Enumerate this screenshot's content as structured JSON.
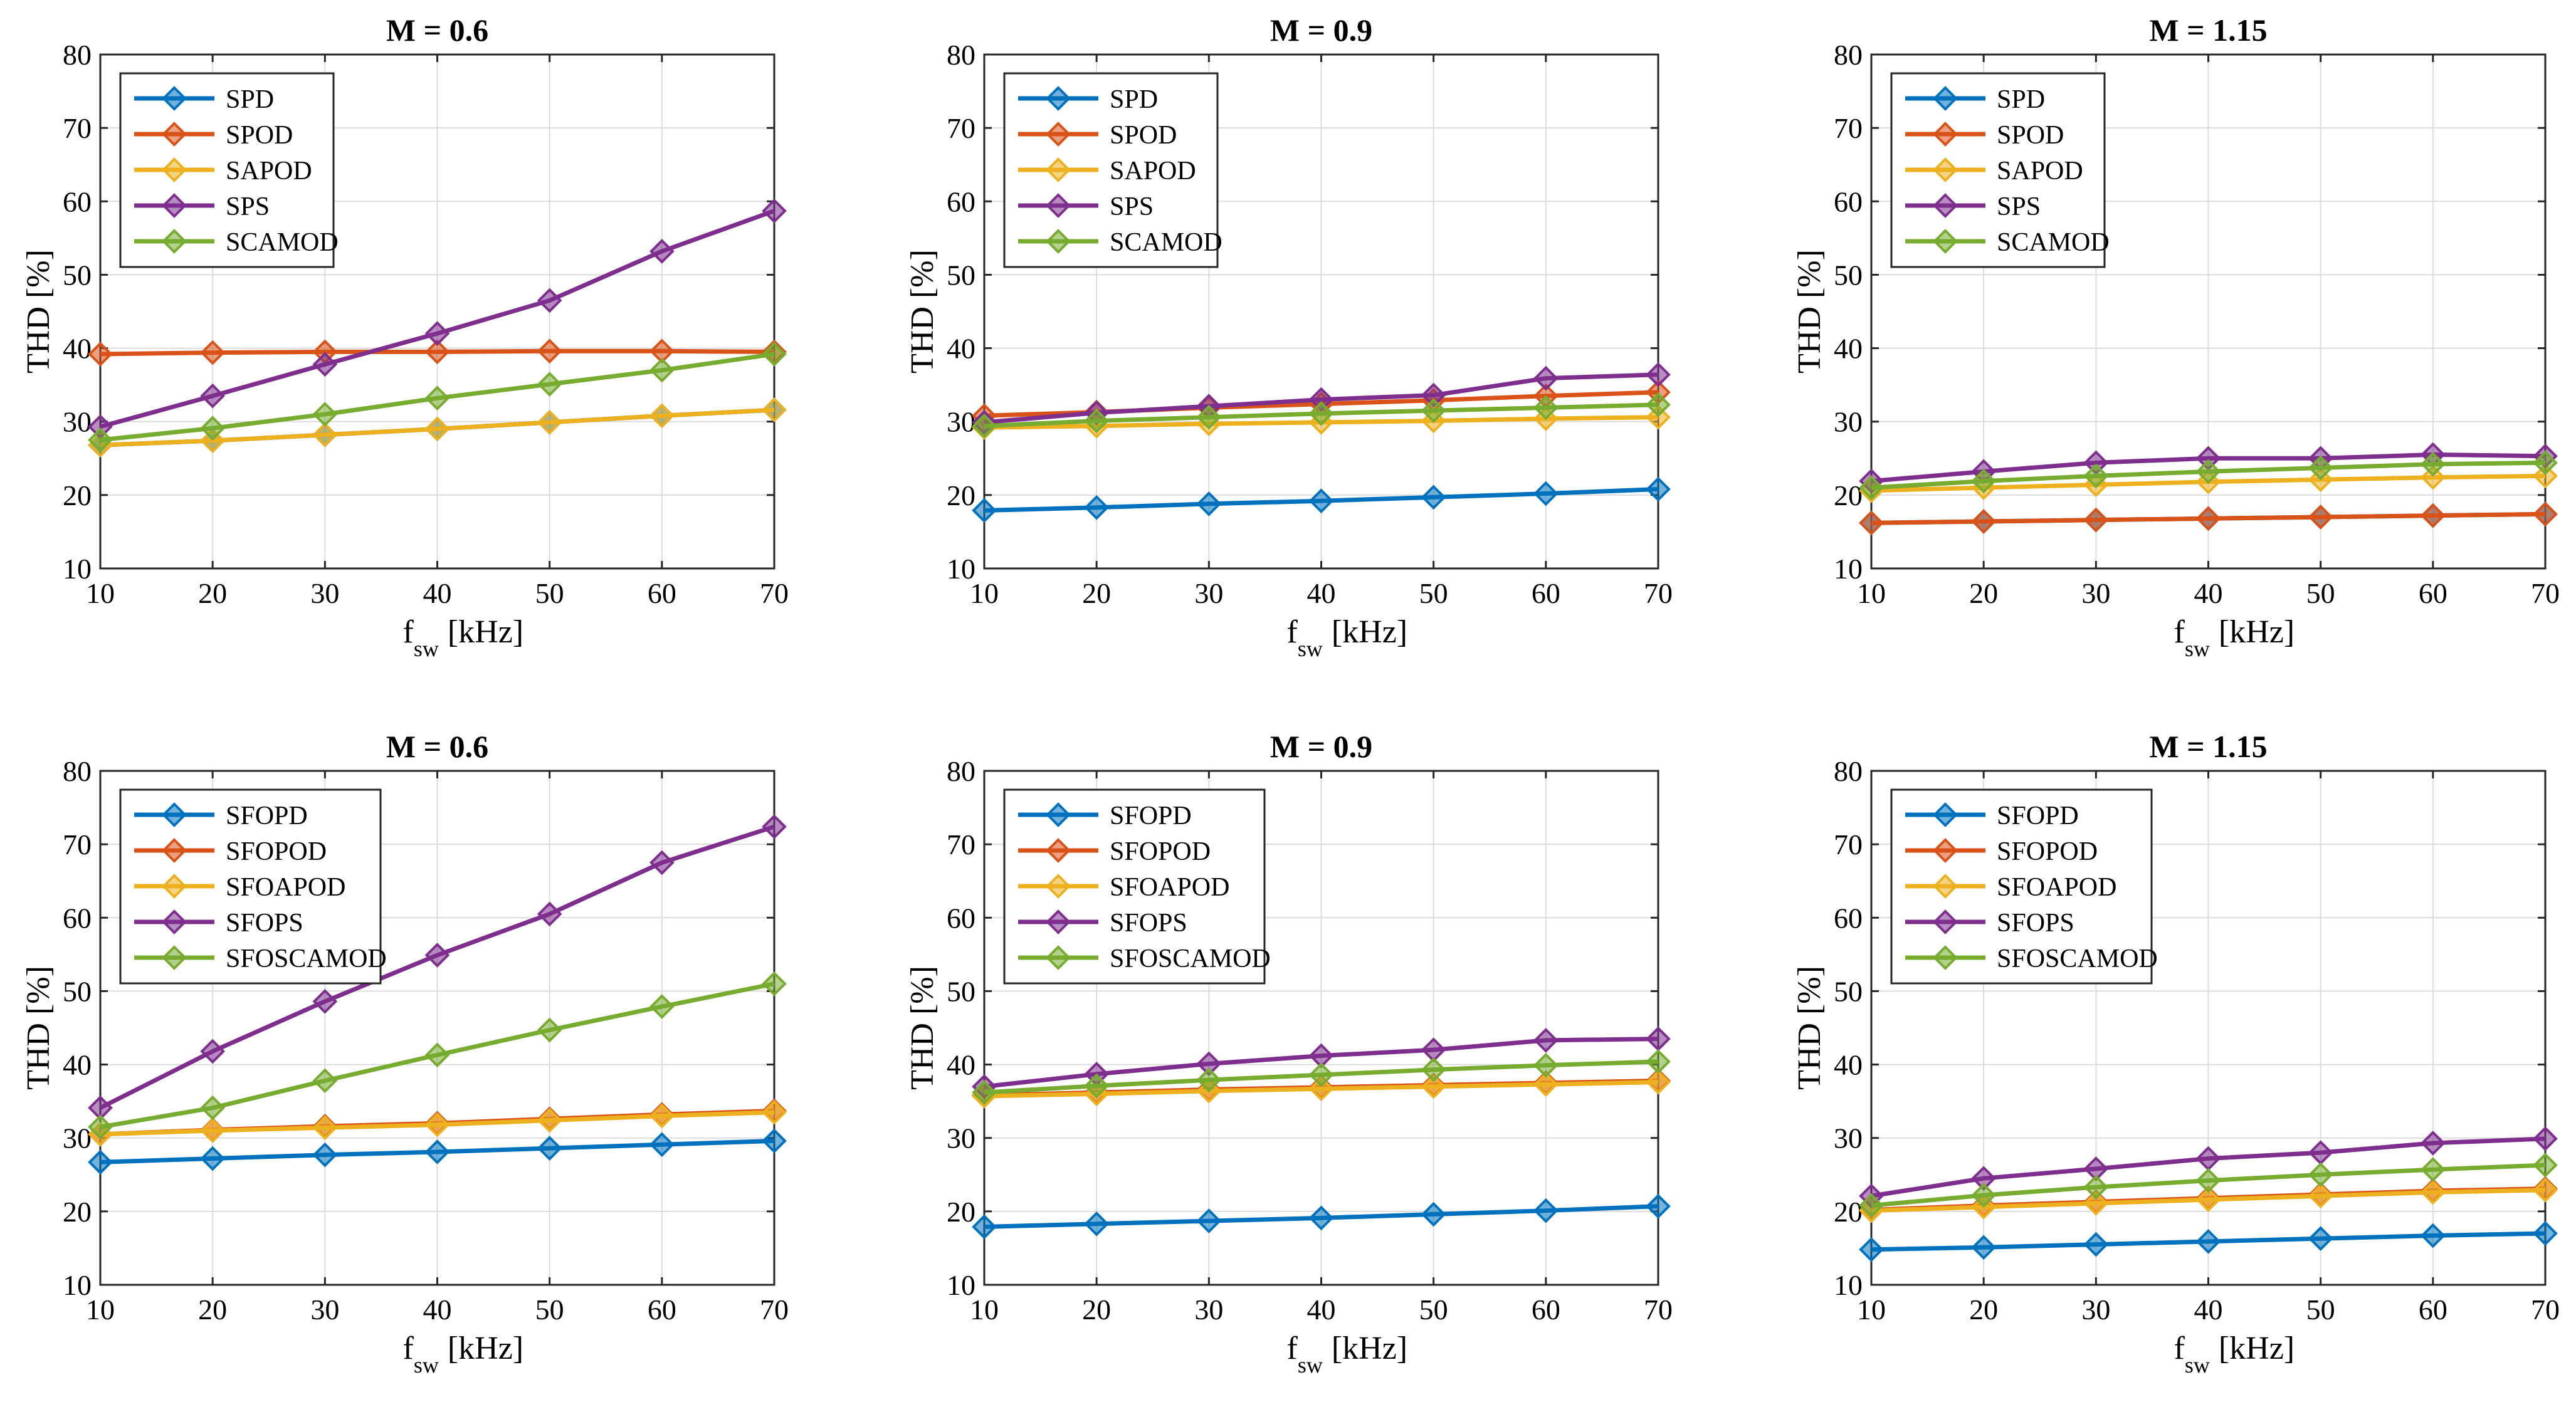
{
  "figure": {
    "colors": {
      "blue": "#0072BD",
      "orange": "#D95319",
      "yellow": "#EDB120",
      "purple": "#7E2F8E",
      "green": "#77AC30",
      "grid": "#dcdcdc",
      "axis": "#262626"
    }
  },
  "chart_data": [
    {
      "type": "line",
      "title": "M = 0.6",
      "xlabel": "f",
      "xlabel_sub": "sw",
      "xlabel_unit": "[kHz]",
      "ylabel": "THD [%]",
      "xlim": [
        10,
        70
      ],
      "ylim": [
        10,
        80
      ],
      "xticks": [
        "10",
        "20",
        "30",
        "40",
        "50",
        "60",
        "70"
      ],
      "yticks": [
        "10",
        "20",
        "30",
        "40",
        "50",
        "60",
        "70",
        "80"
      ],
      "grid": true,
      "legend_position": "top-left",
      "x": [
        10,
        20,
        30,
        40,
        50,
        60,
        70
      ],
      "series": [
        {
          "name": "SPD",
          "color": "#0072BD",
          "values": [
            26.8,
            27.4,
            28.2,
            29.0,
            29.9,
            30.8,
            31.6
          ]
        },
        {
          "name": "SPOD",
          "color": "#D95319",
          "values": [
            39.2,
            39.4,
            39.5,
            39.5,
            39.6,
            39.6,
            39.5
          ]
        },
        {
          "name": "SAPOD",
          "color": "#EDB120",
          "values": [
            26.8,
            27.4,
            28.2,
            29.0,
            29.9,
            30.8,
            31.6
          ]
        },
        {
          "name": "SPS",
          "color": "#7E2F8E",
          "values": [
            29.3,
            33.5,
            37.8,
            42.0,
            46.5,
            53.2,
            58.7
          ]
        },
        {
          "name": "SCAMOD",
          "color": "#77AC30",
          "values": [
            27.5,
            29.1,
            31.0,
            33.2,
            35.1,
            37.0,
            39.2
          ]
        }
      ]
    },
    {
      "type": "line",
      "title": "M = 0.9",
      "xlabel": "f",
      "xlabel_sub": "sw",
      "xlabel_unit": "[kHz]",
      "ylabel": "THD [%]",
      "xlim": [
        10,
        70
      ],
      "ylim": [
        10,
        80
      ],
      "xticks": [
        "10",
        "20",
        "30",
        "40",
        "50",
        "60",
        "70"
      ],
      "yticks": [
        "10",
        "20",
        "30",
        "40",
        "50",
        "60",
        "70",
        "80"
      ],
      "grid": true,
      "legend_position": "top-left",
      "x": [
        10,
        20,
        30,
        40,
        50,
        60,
        70
      ],
      "series": [
        {
          "name": "SPD",
          "color": "#0072BD",
          "values": [
            17.9,
            18.3,
            18.8,
            19.2,
            19.7,
            20.2,
            20.8
          ]
        },
        {
          "name": "SPOD",
          "color": "#D95319",
          "values": [
            30.8,
            31.3,
            31.9,
            32.4,
            32.9,
            33.5,
            34.0
          ]
        },
        {
          "name": "SAPOD",
          "color": "#EDB120",
          "values": [
            29.2,
            29.4,
            29.7,
            29.9,
            30.1,
            30.4,
            30.6
          ]
        },
        {
          "name": "SPS",
          "color": "#7E2F8E",
          "values": [
            29.9,
            31.2,
            32.1,
            33.0,
            33.6,
            35.9,
            36.4
          ]
        },
        {
          "name": "SCAMOD",
          "color": "#77AC30",
          "values": [
            29.4,
            30.1,
            30.6,
            31.1,
            31.5,
            31.9,
            32.3
          ]
        }
      ]
    },
    {
      "type": "line",
      "title": "M = 1.15",
      "xlabel": "f",
      "xlabel_sub": "sw",
      "xlabel_unit": "[kHz]",
      "ylabel": "THD [%]",
      "xlim": [
        10,
        70
      ],
      "ylim": [
        10,
        80
      ],
      "xticks": [
        "10",
        "20",
        "30",
        "40",
        "50",
        "60",
        "70"
      ],
      "yticks": [
        "10",
        "20",
        "30",
        "40",
        "50",
        "60",
        "70",
        "80"
      ],
      "grid": true,
      "legend_position": "top-left",
      "x": [
        10,
        20,
        30,
        40,
        50,
        60,
        70
      ],
      "series": [
        {
          "name": "SPD",
          "color": "#0072BD",
          "values": [
            16.2,
            16.4,
            16.6,
            16.8,
            17.0,
            17.2,
            17.4
          ]
        },
        {
          "name": "SPOD",
          "color": "#D95319",
          "values": [
            16.2,
            16.4,
            16.6,
            16.8,
            17.0,
            17.2,
            17.4
          ]
        },
        {
          "name": "SAPOD",
          "color": "#EDB120",
          "values": [
            20.6,
            21.0,
            21.4,
            21.8,
            22.1,
            22.4,
            22.6
          ]
        },
        {
          "name": "SPS",
          "color": "#7E2F8E",
          "values": [
            21.9,
            23.2,
            24.4,
            25.0,
            25.0,
            25.5,
            25.3
          ]
        },
        {
          "name": "SCAMOD",
          "color": "#77AC30",
          "values": [
            21.0,
            21.9,
            22.6,
            23.2,
            23.7,
            24.2,
            24.4
          ]
        }
      ]
    },
    {
      "type": "line",
      "title": "M = 0.6",
      "xlabel": "f",
      "xlabel_sub": "sw",
      "xlabel_unit": "[kHz]",
      "ylabel": "THD [%]",
      "xlim": [
        10,
        70
      ],
      "ylim": [
        10,
        80
      ],
      "xticks": [
        "10",
        "20",
        "30",
        "40",
        "50",
        "60",
        "70"
      ],
      "yticks": [
        "10",
        "20",
        "30",
        "40",
        "50",
        "60",
        "70",
        "80"
      ],
      "grid": true,
      "legend_position": "top-left",
      "x": [
        10,
        20,
        30,
        40,
        50,
        60,
        70
      ],
      "series": [
        {
          "name": "SFOPD",
          "color": "#0072BD",
          "values": [
            26.7,
            27.2,
            27.7,
            28.1,
            28.6,
            29.1,
            29.6
          ]
        },
        {
          "name": "SFOPOD",
          "color": "#D95319",
          "values": [
            30.5,
            31.1,
            31.6,
            32.0,
            32.6,
            33.2,
            33.7
          ]
        },
        {
          "name": "SFOAPOD",
          "color": "#EDB120",
          "values": [
            30.5,
            31.0,
            31.4,
            31.8,
            32.4,
            33.0,
            33.5
          ]
        },
        {
          "name": "SFOPS",
          "color": "#7E2F8E",
          "values": [
            34.1,
            41.8,
            48.6,
            54.9,
            60.5,
            67.5,
            72.4
          ]
        },
        {
          "name": "SFOSCAMOD",
          "color": "#77AC30",
          "values": [
            31.5,
            34.1,
            37.8,
            41.3,
            44.7,
            47.9,
            51.0
          ]
        }
      ]
    },
    {
      "type": "line",
      "title": "M = 0.9",
      "xlabel": "f",
      "xlabel_sub": "sw",
      "xlabel_unit": "[kHz]",
      "ylabel": "THD [%]",
      "xlim": [
        10,
        70
      ],
      "ylim": [
        10,
        80
      ],
      "xticks": [
        "10",
        "20",
        "30",
        "40",
        "50",
        "60",
        "70"
      ],
      "yticks": [
        "10",
        "20",
        "30",
        "40",
        "50",
        "60",
        "70",
        "80"
      ],
      "grid": true,
      "legend_position": "top-left",
      "x": [
        10,
        20,
        30,
        40,
        50,
        60,
        70
      ],
      "series": [
        {
          "name": "SFOPD",
          "color": "#0072BD",
          "values": [
            17.9,
            18.3,
            18.7,
            19.1,
            19.6,
            20.1,
            20.7
          ]
        },
        {
          "name": "SFOPOD",
          "color": "#D95319",
          "values": [
            35.8,
            36.2,
            36.6,
            36.9,
            37.2,
            37.5,
            37.8
          ]
        },
        {
          "name": "SFOAPOD",
          "color": "#EDB120",
          "values": [
            35.7,
            36.0,
            36.4,
            36.7,
            37.0,
            37.3,
            37.6
          ]
        },
        {
          "name": "SFOPS",
          "color": "#7E2F8E",
          "values": [
            37.0,
            38.7,
            40.1,
            41.2,
            42.0,
            43.3,
            43.5
          ]
        },
        {
          "name": "SFOSCAMOD",
          "color": "#77AC30",
          "values": [
            36.2,
            37.1,
            37.9,
            38.6,
            39.3,
            39.9,
            40.4
          ]
        }
      ]
    },
    {
      "type": "line",
      "title": "M = 1.15",
      "xlabel": "f",
      "xlabel_sub": "sw",
      "xlabel_unit": "[kHz]",
      "ylabel": "THD [%]",
      "xlim": [
        10,
        70
      ],
      "ylim": [
        10,
        80
      ],
      "xticks": [
        "10",
        "20",
        "30",
        "40",
        "50",
        "60",
        "70"
      ],
      "yticks": [
        "10",
        "20",
        "30",
        "40",
        "50",
        "60",
        "70",
        "80"
      ],
      "grid": true,
      "legend_position": "top-left",
      "x": [
        10,
        20,
        30,
        40,
        50,
        60,
        70
      ],
      "series": [
        {
          "name": "SFOPD",
          "color": "#0072BD",
          "values": [
            14.8,
            15.1,
            15.5,
            15.9,
            16.3,
            16.7,
            17.0
          ]
        },
        {
          "name": "SFOPOD",
          "color": "#D95319",
          "values": [
            20.2,
            20.8,
            21.3,
            21.8,
            22.3,
            22.8,
            23.1
          ]
        },
        {
          "name": "SFOAPOD",
          "color": "#EDB120",
          "values": [
            20.1,
            20.6,
            21.1,
            21.6,
            22.1,
            22.6,
            22.9
          ]
        },
        {
          "name": "SFOPS",
          "color": "#7E2F8E",
          "values": [
            22.1,
            24.5,
            25.8,
            27.2,
            28.0,
            29.3,
            29.9
          ]
        },
        {
          "name": "SFOSCAMOD",
          "color": "#77AC30",
          "values": [
            20.8,
            22.2,
            23.3,
            24.2,
            25.0,
            25.7,
            26.3
          ]
        }
      ]
    }
  ]
}
